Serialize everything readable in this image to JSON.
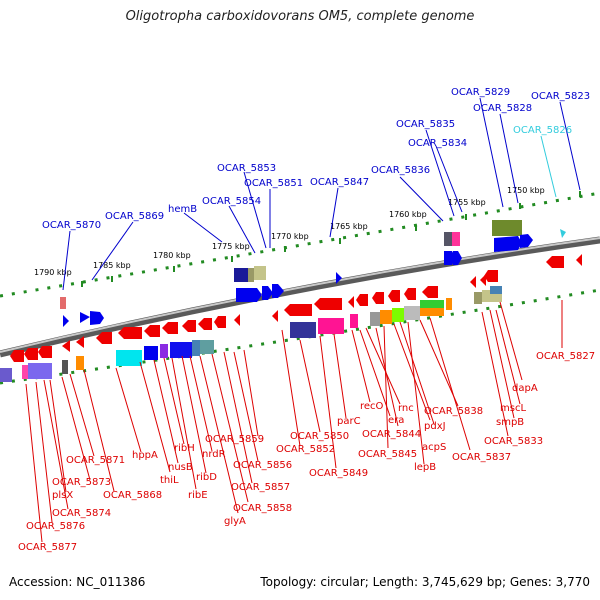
{
  "title": "Oligotropha carboxidovorans OM5, complete genome",
  "footer": {
    "accession": "Accession: NC_011386",
    "topology": "Topology: circular; Length: 3,745,629 bp; Genes: 3,770"
  },
  "colors": {
    "upper_label": "#0000cc",
    "upper_label_light": "#33ccdd",
    "lower_label": "#dd0000",
    "backbone": "#888888",
    "dot": "#228b22"
  },
  "scale_labels": [
    "1790 kbp",
    "1785 kbp",
    "1780 kbp",
    "1775 kbp",
    "1770 kbp",
    "1765 kbp",
    "1760 kbp",
    "1755 kbp",
    "1750 kbp"
  ],
  "upper_labels": [
    "OCAR_5870",
    "OCAR_5869",
    "hemB",
    "OCAR_5854",
    "OCAR_5853",
    "OCAR_5851",
    "OCAR_5847",
    "OCAR_5836",
    "OCAR_5835",
    "OCAR_5834",
    "OCAR_5829",
    "OCAR_5828",
    "OCAR_5826",
    "OCAR_5823"
  ],
  "lower_labels": [
    "OCAR_5877",
    "OCAR_5876",
    "OCAR_5874",
    "plsX",
    "OCAR_5873",
    "OCAR_5871",
    "OCAR_5868",
    "hppA",
    "thiL",
    "nusB",
    "ribH",
    "ribE",
    "ribD",
    "nrdR",
    "glyA",
    "OCAR_5858",
    "OCAR_5857",
    "OCAR_5856",
    "OCAR_5859",
    "OCAR_5852",
    "OCAR_5850",
    "OCAR_5849",
    "parC",
    "recO",
    "era",
    "rnc",
    "OCAR_5844",
    "OCAR_5845",
    "acpS",
    "pdxJ",
    "lepB",
    "OCAR_5838",
    "OCAR_5837",
    "OCAR_5833",
    "smpB",
    "mscL",
    "dapA",
    "OCAR_5827"
  ]
}
